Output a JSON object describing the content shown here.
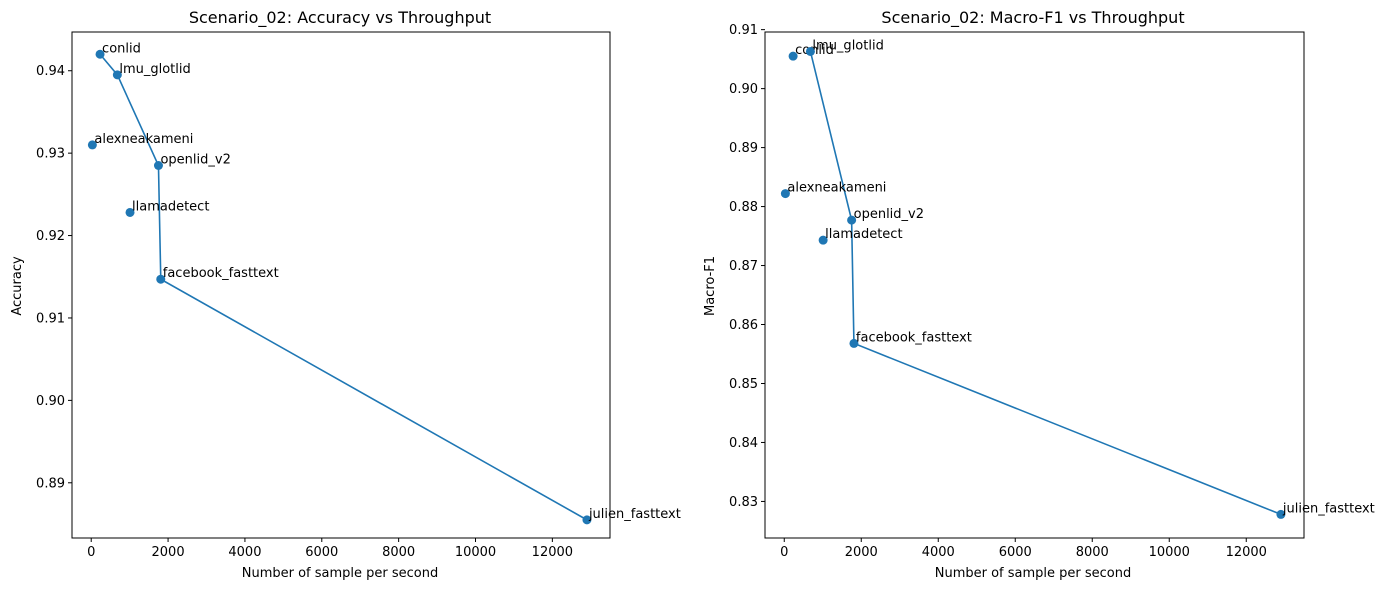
{
  "chart_data": [
    {
      "type": "scatter",
      "title": "Scenario_02: Accuracy vs Throughput",
      "xlabel": "Number of sample per second",
      "ylabel": "Accuracy",
      "xlim": [
        -500,
        13500
      ],
      "ylim": [
        0.8833,
        0.9447
      ],
      "xticks": [
        0,
        2000,
        4000,
        6000,
        8000,
        10000,
        12000
      ],
      "yticks": [
        0.89,
        0.9,
        0.91,
        0.92,
        0.93,
        0.94
      ],
      "xtick_labels": [
        "0",
        "2000",
        "4000",
        "6000",
        "8000",
        "10000",
        "12000"
      ],
      "ytick_labels": [
        "0.89",
        "0.90",
        "0.91",
        "0.92",
        "0.93",
        "0.94"
      ],
      "grid": false,
      "color": "#1f77b4",
      "points": [
        {
          "label": "conlid",
          "x": 230,
          "y": 0.942
        },
        {
          "label": "lmu_glotlid",
          "x": 680,
          "y": 0.9395
        },
        {
          "label": "alexneakameni",
          "x": 30,
          "y": 0.931
        },
        {
          "label": "openlid_v2",
          "x": 1750,
          "y": 0.9285
        },
        {
          "label": "llamadetect",
          "x": 1010,
          "y": 0.9228
        },
        {
          "label": "facebook_fasttext",
          "x": 1810,
          "y": 0.9147
        },
        {
          "label": "julien_fasttext",
          "x": 12900,
          "y": 0.8855
        }
      ],
      "frontier": [
        "conlid",
        "lmu_glotlid",
        "openlid_v2",
        "facebook_fasttext",
        "julien_fasttext"
      ]
    },
    {
      "type": "scatter",
      "title": "Scenario_02: Macro-F1 vs Throughput",
      "xlabel": "Number of sample per second",
      "ylabel": "Macro-F1",
      "xlim": [
        -500,
        13500
      ],
      "ylim": [
        0.8238,
        0.9096
      ],
      "xticks": [
        0,
        2000,
        4000,
        6000,
        8000,
        10000,
        12000
      ],
      "yticks": [
        0.83,
        0.84,
        0.85,
        0.86,
        0.87,
        0.88,
        0.89,
        0.9,
        0.91
      ],
      "xtick_labels": [
        "0",
        "2000",
        "4000",
        "6000",
        "8000",
        "10000",
        "12000"
      ],
      "ytick_labels": [
        "0.83",
        "0.84",
        "0.85",
        "0.86",
        "0.87",
        "0.88",
        "0.89",
        "0.90",
        "0.91"
      ],
      "grid": false,
      "color": "#1f77b4",
      "points": [
        {
          "label": "conlid",
          "x": 230,
          "y": 0.9055
        },
        {
          "label": "lmu_glotlid",
          "x": 680,
          "y": 0.9063
        },
        {
          "label": "alexneakameni",
          "x": 30,
          "y": 0.8822
        },
        {
          "label": "openlid_v2",
          "x": 1750,
          "y": 0.8777
        },
        {
          "label": "llamadetect",
          "x": 1010,
          "y": 0.8743
        },
        {
          "label": "facebook_fasttext",
          "x": 1810,
          "y": 0.8568
        },
        {
          "label": "julien_fasttext",
          "x": 12900,
          "y": 0.8278
        }
      ],
      "frontier": [
        "lmu_glotlid",
        "openlid_v2",
        "facebook_fasttext",
        "julien_fasttext"
      ]
    }
  ]
}
